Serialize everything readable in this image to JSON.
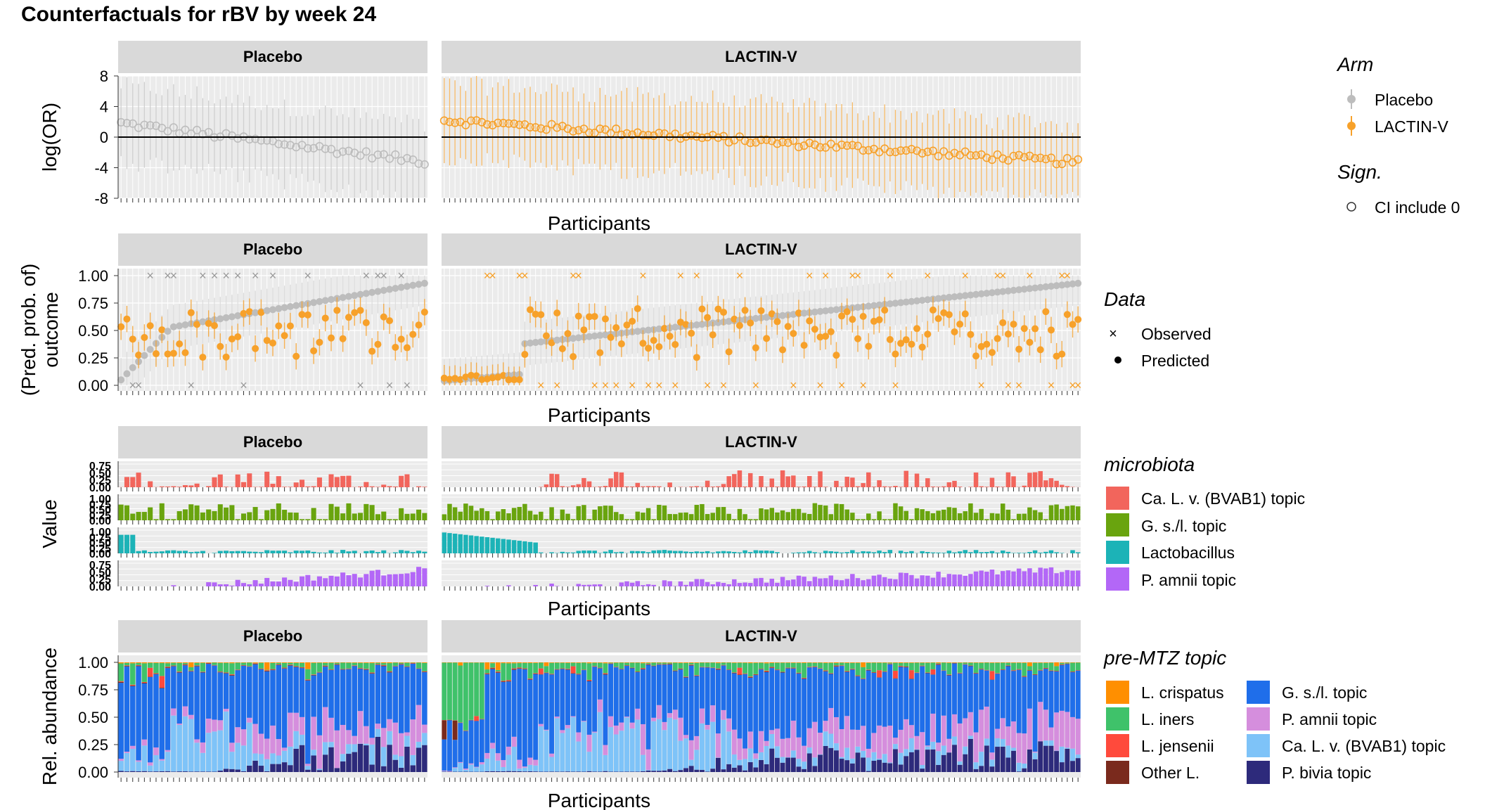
{
  "title": "Counterfactuals for rBV by week 24",
  "colors": {
    "placebo": "#BDBDBD",
    "lactin": "#F7A12A",
    "panel_bg": "#EBEBEB",
    "strip_bg": "#D9D9D9",
    "grid": "#FFFFFF",
    "microbiota": {
      "Ca. L. v. (BVAB1) topic": "#F2655C",
      "G. s./l. topic": "#69A40E",
      "Lactobacillus": "#1CB3B7",
      "P. amnii topic": "#B367F7"
    },
    "topics": {
      "L. crispatus": "#FF8F00",
      "L. iners": "#3FC26A",
      "L. jensenii": "#FF4A3C",
      "Other L.": "#7A2A1D",
      "G. s./l. topic": "#1F6EEA",
      "P. amnii topic": "#D58EDD",
      "Ca. L. v. (BVAB1) topic": "#7EC3F8",
      "P. bivia topic": "#2D2A7B"
    }
  },
  "chart_data": [
    {
      "type": "scatter",
      "panel": "log-odds-ratio",
      "facets": [
        "Placebo",
        "LACTIN-V"
      ],
      "xlabel": "Participants",
      "ylabel": "log(OR)",
      "yticks": [
        8,
        4,
        0,
        -4,
        -8
      ],
      "ylim": [
        -8,
        8
      ],
      "n_participants": {
        "Placebo": 53,
        "LACTIN-V": 119
      },
      "series": [
        {
          "name": "Placebo",
          "facet": "Placebo",
          "estimate_range": [
            1.8,
            -3.2
          ],
          "ci_halfwidth": 5.0
        },
        {
          "name": "LACTIN-V",
          "facet": "LACTIN-V",
          "estimate_range": [
            2.2,
            -3.3
          ],
          "ci_halfwidth": 5.0
        }
      ],
      "reference_line": 0
    },
    {
      "type": "scatter",
      "panel": "predicted-probability",
      "facets": [
        "Placebo",
        "LACTIN-V"
      ],
      "xlabel": "Participants",
      "ylabel": "(Pred. prob. of)\noutcome",
      "yticks": [
        1.0,
        0.75,
        0.5,
        0.25,
        0.0
      ],
      "ytick_labels": [
        "1.00",
        "0.75",
        "0.50",
        "0.25",
        "0.00"
      ],
      "ylim": [
        0,
        1
      ],
      "series": [
        {
          "name": "Placebo counterfactual",
          "facet": "Placebo",
          "range": [
            0.05,
            0.93
          ]
        },
        {
          "name": "LACTIN-V counterfactual",
          "facet": "LACTIN-V",
          "range": [
            0.04,
            0.93
          ]
        }
      ]
    },
    {
      "type": "bar",
      "panel": "microbiota-values",
      "facets": [
        "Placebo",
        "LACTIN-V"
      ],
      "xlabel": "Participants",
      "ylabel": "Value",
      "rows": [
        {
          "name": "Ca. L. v. (BVAB1) topic",
          "yticks": [
            "0.75",
            "0.50",
            "0.25",
            "0.00"
          ]
        },
        {
          "name": "G. s./l. topic",
          "yticks": [
            "1.00",
            "0.75",
            "0.50",
            "0.25",
            "0.00"
          ]
        },
        {
          "name": "Lactobacillus",
          "yticks": [
            "1.00",
            "0.75",
            "0.50",
            "0.25",
            "0.00"
          ]
        },
        {
          "name": "P. amnii topic",
          "yticks": [
            "0.75",
            "0.50",
            "0.25",
            "0.00"
          ]
        }
      ]
    },
    {
      "type": "bar",
      "panel": "pre-mtz-topic-composition",
      "facets": [
        "Placebo",
        "LACTIN-V"
      ],
      "xlabel": "Participants",
      "ylabel": "Rel. abundance",
      "yticks": [
        "1.00",
        "0.75",
        "0.50",
        "0.25",
        "0.00"
      ],
      "stacked": true,
      "categories": [
        "L. crispatus",
        "L. iners",
        "L. jensenii",
        "Other L.",
        "G. s./l. topic",
        "P. amnii topic",
        "Ca. L. v. (BVAB1) topic",
        "P. bivia topic"
      ]
    }
  ],
  "legends": {
    "arm": {
      "title": "Arm",
      "items": [
        "Placebo",
        "LACTIN-V"
      ]
    },
    "sign": {
      "title": "Sign.",
      "items": [
        "CI include 0"
      ]
    },
    "data": {
      "title": "Data",
      "items": [
        "Observed",
        "Predicted"
      ]
    },
    "microbiota": {
      "title": "microbiota",
      "items": [
        "Ca. L. v. (BVAB1) topic",
        "G. s./l. topic",
        "Lactobacillus",
        "P. amnii topic"
      ]
    },
    "topic": {
      "title": "pre-MTZ topic",
      "col1": [
        "L. crispatus",
        "L. iners",
        "L. jensenii",
        "Other L."
      ],
      "col2": [
        "G. s./l. topic",
        "P. amnii topic",
        "Ca. L. v. (BVAB1) topic",
        "P. bivia topic"
      ]
    }
  }
}
